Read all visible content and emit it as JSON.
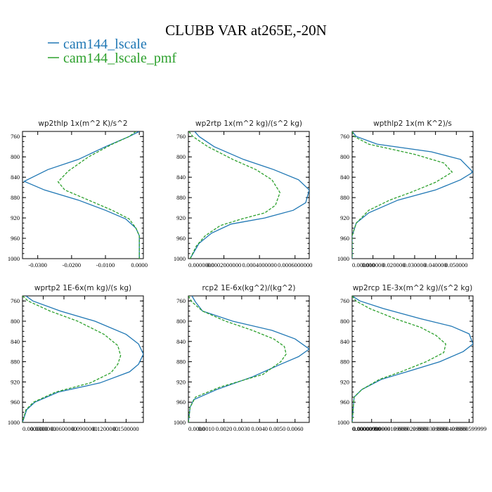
{
  "title": "CLUBB VAR at265E,-20N",
  "legend": [
    {
      "label": "cam144_lscale",
      "color": "#1f77b4"
    },
    {
      "label": "cam144_lscale_pmf",
      "color": "#2ca02c"
    }
  ],
  "chart_data": [
    {
      "type": "line",
      "title": "wp2thlp   1x(m^2 K)/s^2",
      "y_ticks": [
        "760",
        "800",
        "840",
        "880",
        "920",
        "960",
        "1000"
      ],
      "y_values": [
        760,
        800,
        840,
        880,
        920,
        960,
        1000
      ],
      "ylim": [
        1000,
        750
      ],
      "xlim": [
        -0.0345,
        0.0012
      ],
      "x_ticks": [
        -0.03,
        -0.02,
        -0.01,
        0
      ],
      "x_tick_labels": [
        "-0.0300",
        "-0.0200",
        "-0.0100",
        "0.0000"
      ],
      "series": [
        {
          "name": "cam144_lscale",
          "color": "#1f77b4",
          "dash": "",
          "x": [
            0.0,
            -0.003,
            -0.01,
            -0.018,
            -0.027,
            -0.034,
            -0.028,
            -0.018,
            -0.01,
            -0.004,
            -0.001,
            0.0,
            0.0,
            0.0,
            0.0
          ],
          "y": [
            750,
            760,
            780,
            805,
            825,
            848,
            865,
            885,
            905,
            922,
            940,
            955,
            970,
            985,
            1000
          ]
        },
        {
          "name": "cam144_lscale_pmf",
          "color": "#2ca02c",
          "dash": "4,2",
          "x": [
            -0.001,
            -0.003,
            -0.008,
            -0.015,
            -0.021,
            -0.024,
            -0.022,
            -0.015,
            -0.008,
            -0.003,
            -0.001,
            0.0,
            0.0,
            0.0
          ],
          "y": [
            750,
            760,
            775,
            800,
            828,
            849,
            865,
            885,
            905,
            922,
            940,
            955,
            970,
            1000
          ]
        }
      ]
    },
    {
      "type": "line",
      "title": "wp2rtp   1x(m^2 kg)/(s^2 kg)",
      "y_ticks": [
        "760",
        "800",
        "840",
        "880",
        "920",
        "960",
        "1000"
      ],
      "y_values": [
        760,
        800,
        840,
        880,
        920,
        960,
        1000
      ],
      "ylim": [
        1000,
        750
      ],
      "xlim": [
        0,
        0.00068
      ],
      "x_ticks": [
        0,
        0.0002,
        0.0004,
        0.0006
      ],
      "x_tick_labels": [
        "0.0000000",
        "0.0002000000",
        "0.0004000000",
        "0.0006000000"
      ],
      "series": [
        {
          "name": "cam144_lscale",
          "color": "#1f77b4",
          "dash": "",
          "x": [
            3.5e-05,
            6e-05,
            0.000145,
            0.00031,
            0.00048,
            0.00062,
            0.00068,
            0.00066,
            0.00059,
            0.00043,
            0.00024,
            0.00013,
            6e-05,
            1e-05
          ],
          "y": [
            750,
            760,
            780,
            805,
            825,
            845,
            865,
            890,
            905,
            920,
            932,
            950,
            970,
            1000
          ]
        },
        {
          "name": "cam144_lscale_pmf",
          "color": "#2ca02c",
          "dash": "4,2",
          "x": [
            3e-06,
            2.5e-05,
            0.00011,
            0.00025,
            0.00038,
            0.00047,
            0.000515,
            0.00049,
            0.00043,
            0.0003,
            0.00018,
            9.5e-05,
            4.5e-05,
            1e-05
          ],
          "y": [
            750,
            760,
            780,
            805,
            825,
            845,
            870,
            895,
            910,
            922,
            935,
            955,
            975,
            1000
          ]
        }
      ]
    },
    {
      "type": "line",
      "title": "wpthlp2   1x(m K^2)/s",
      "y_ticks": [
        "760",
        "800",
        "840",
        "880",
        "920",
        "960",
        "1000"
      ],
      "y_values": [
        760,
        800,
        840,
        880,
        920,
        960,
        1000
      ],
      "ylim": [
        1000,
        750
      ],
      "xlim": [
        0,
        0.058
      ],
      "x_ticks": [
        0,
        0.01,
        0.02,
        0.03,
        0.04,
        0.05
      ],
      "x_tick_labels": [
        "0.000000",
        "0.010000",
        "0.020000",
        "0.030000",
        "0.040000",
        "0.050000"
      ],
      "series": [
        {
          "name": "cam144_lscale",
          "color": "#1f77b4",
          "dash": "",
          "x": [
            0.0,
            0.002,
            0.012,
            0.038,
            0.052,
            0.058,
            0.052,
            0.04,
            0.022,
            0.008,
            0.002,
            0.0,
            0.0
          ],
          "y": [
            750,
            760,
            775,
            790,
            805,
            830,
            845,
            865,
            885,
            910,
            930,
            955,
            1000
          ]
        },
        {
          "name": "cam144_lscale_pmf",
          "color": "#2ca02c",
          "dash": "4,2",
          "x": [
            0.0,
            0.001,
            0.008,
            0.03,
            0.044,
            0.048,
            0.04,
            0.028,
            0.018,
            0.008,
            0.002,
            0.0,
            0.0
          ],
          "y": [
            750,
            760,
            775,
            795,
            812,
            830,
            850,
            870,
            885,
            905,
            930,
            955,
            1000
          ]
        }
      ]
    },
    {
      "type": "line",
      "title": "wprtp2   1E-6x(m kg)/(s kg)",
      "y_ticks": [
        "760",
        "800",
        "840",
        "880",
        "920",
        "960",
        "1000"
      ],
      "y_values": [
        760,
        800,
        840,
        880,
        920,
        960,
        1000
      ],
      "ylim": [
        1000,
        750
      ],
      "xlim": [
        0,
        0.000175
      ],
      "x_ticks": [
        0,
        3e-05,
        6e-05,
        9e-05,
        0.00012,
        0.00015
      ],
      "x_tick_labels": [
        "0.0000000",
        "0.0300000",
        "0.0600000",
        "0.0900000",
        "0.1200000",
        "0.1500000"
      ],
      "series": [
        {
          "name": "cam144_lscale",
          "color": "#1f77b4",
          "dash": "",
          "x": [
            5e-06,
            1.5e-05,
            5.5e-05,
            0.000105,
            0.00015,
            0.000168,
            0.000175,
            0.000168,
            0.000155,
            0.000112,
            5.2e-05,
            1.8e-05,
            6e-06,
            0.0
          ],
          "y": [
            750,
            760,
            780,
            800,
            826,
            845,
            865,
            885,
            900,
            922,
            940,
            960,
            975,
            1000
          ]
        },
        {
          "name": "cam144_lscale_pmf",
          "color": "#2ca02c",
          "dash": "4,2",
          "x": [
            0.0,
            8e-06,
            4e-05,
            8e-05,
            0.000118,
            0.000138,
            0.000142,
            0.000138,
            0.000128,
            9.8e-05,
            4.8e-05,
            1.6e-05,
            5e-06,
            0.0
          ],
          "y": [
            750,
            760,
            780,
            800,
            826,
            848,
            868,
            885,
            902,
            922,
            940,
            960,
            975,
            1000
          ]
        }
      ]
    },
    {
      "type": "line",
      "title": "rcp2   1E-6x(kg^2)/(kg^2)",
      "y_ticks": [
        "760",
        "800",
        "840",
        "880",
        "920",
        "960",
        "1000"
      ],
      "y_values": [
        760,
        800,
        840,
        880,
        920,
        960,
        1000
      ],
      "ylim": [
        1000,
        750
      ],
      "xlim": [
        0,
        0.0068
      ],
      "x_ticks": [
        0,
        0.001,
        0.002,
        0.003,
        0.004,
        0.005,
        0.006
      ],
      "x_tick_labels": [
        "0.0000",
        "0.0010",
        "0.0020",
        "0.0030",
        "0.0040",
        "0.0050",
        "0.0060"
      ],
      "series": [
        {
          "name": "cam144_lscale",
          "color": "#1f77b4",
          "dash": "",
          "x": [
            0.0002,
            0.0004,
            0.0008,
            0.0025,
            0.0047,
            0.006,
            0.0068,
            0.0062,
            0.0052,
            0.0036,
            0.0016,
            0.0003,
            0.0001,
            0.0
          ],
          "y": [
            750,
            762,
            780,
            800,
            818,
            835,
            855,
            870,
            885,
            910,
            935,
            955,
            970,
            1000
          ]
        },
        {
          "name": "cam144_lscale_pmf",
          "color": "#2ca02c",
          "dash": "4,2",
          "x": [
            0.0,
            0.0002,
            0.0008,
            0.0021,
            0.0036,
            0.0048,
            0.0054,
            0.0055,
            0.0052,
            0.0042,
            0.0018,
            0.0004,
            0.0001,
            0.0
          ],
          "y": [
            750,
            762,
            780,
            800,
            818,
            835,
            850,
            865,
            880,
            905,
            930,
            950,
            970,
            1000
          ]
        }
      ]
    },
    {
      "type": "line",
      "title": "wp2rcp   1E-3x(m^2 kg)/(s^2 kg)",
      "y_ticks": [
        "760",
        "800",
        "840",
        "880",
        "920",
        "960",
        "1000"
      ],
      "y_values": [
        760,
        800,
        840,
        880,
        920,
        960,
        1000
      ],
      "ylim": [
        1000,
        750
      ],
      "xlim": [
        0,
        6.2e-06
      ],
      "x_ticks": [
        0,
        1e-06,
        2e-06,
        3e-06,
        4e-06,
        5e-06,
        6e-06
      ],
      "x_tick_labels": [
        "0.00000000",
        "0.00000999999",
        "0.0000199999",
        "0.0000299999",
        "0.0000399999",
        "0.0000499999",
        "0.0000599999"
      ],
      "series": [
        {
          "name": "cam144_lscale",
          "color": "#1f77b4",
          "dash": "",
          "x": [
            0.0,
            4e-07,
            1.6e-06,
            3.5e-06,
            5.1e-06,
            6e-06,
            6.2e-06,
            5.7e-06,
            4.5e-06,
            2.8e-06,
            1.5e-06,
            5e-07,
            1e-07,
            0.0
          ],
          "y": [
            750,
            760,
            775,
            795,
            810,
            825,
            845,
            860,
            880,
            900,
            915,
            935,
            950,
            1000
          ]
        },
        {
          "name": "cam144_lscale_pmf",
          "color": "#2ca02c",
          "dash": "4,2",
          "x": [
            0.0,
            2e-07,
            9e-07,
            2.2e-06,
            3.5e-06,
            4.3e-06,
            4.8e-06,
            4.7e-06,
            3.8e-06,
            2.5e-06,
            1.4e-06,
            5e-07,
            1e-07,
            0.0
          ],
          "y": [
            750,
            760,
            775,
            795,
            812,
            828,
            845,
            862,
            880,
            900,
            915,
            935,
            950,
            1000
          ]
        }
      ]
    }
  ]
}
